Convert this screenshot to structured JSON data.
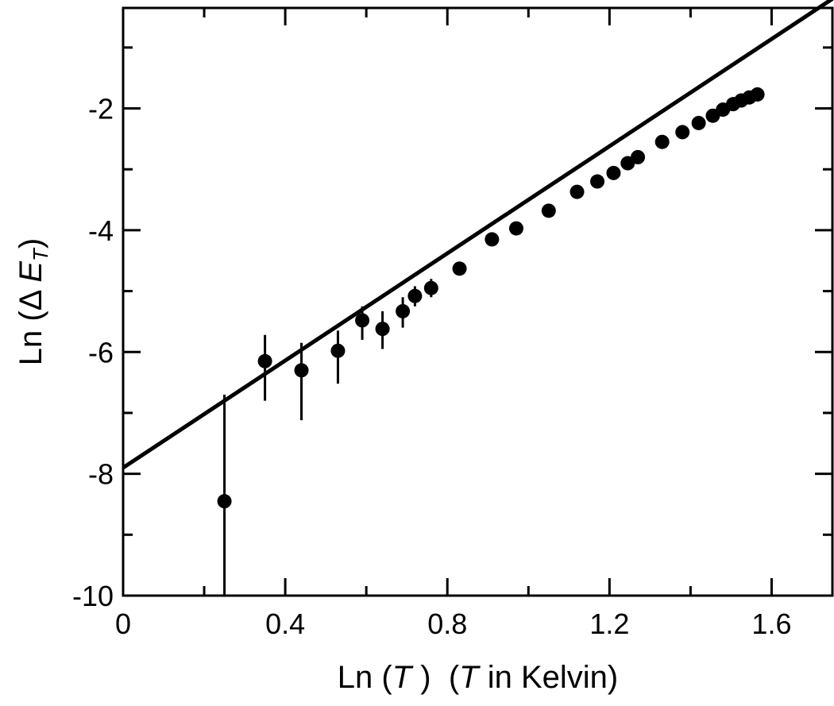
{
  "chart_data": {
    "type": "scatter",
    "title": "",
    "xlabel": {
      "prefix": "Ln (",
      "var1": "T",
      "mid": " )  (",
      "var2": "T",
      "suffix": " in Kelvin)"
    },
    "ylabel": {
      "prefix": "Ln (Δ ",
      "var": "E",
      "sub": "T",
      "suffix": ")"
    },
    "xlim": [
      0,
      1.75
    ],
    "ylim": [
      -10,
      -0.35
    ],
    "x_ticks": [
      0,
      0.4,
      0.8,
      1.2,
      1.6
    ],
    "x_tick_labels": [
      "0",
      "0.4",
      "0.8",
      "1.2",
      "1.6"
    ],
    "x_minor_ticks": [
      0.2,
      0.6,
      1.0,
      1.4
    ],
    "y_ticks": [
      -10,
      -8,
      -6,
      -4,
      -2
    ],
    "y_tick_labels": [
      "-10",
      "-8",
      "-6",
      "-4",
      "-2"
    ],
    "y_minor_ticks": [
      -9,
      -7,
      -5,
      -3,
      -1
    ],
    "grid": false,
    "legend": "none",
    "colors": {
      "marker": "#000000",
      "line": "#000000"
    },
    "fit_line": {
      "slope": 4.4,
      "intercept": -7.9
    },
    "series": [
      {
        "points": [
          {
            "x": 0.25,
            "y": -8.45,
            "ylow": -10.0,
            "yhigh": -6.7
          },
          {
            "x": 0.35,
            "y": -6.15,
            "ylow": -6.8,
            "yhigh": -5.72
          },
          {
            "x": 0.44,
            "y": -6.3,
            "ylow": -7.12,
            "yhigh": -5.85
          },
          {
            "x": 0.53,
            "y": -5.98,
            "ylow": -6.52,
            "yhigh": -5.65
          },
          {
            "x": 0.59,
            "y": -5.48,
            "ylow": -5.8,
            "yhigh": -5.25
          },
          {
            "x": 0.64,
            "y": -5.62,
            "ylow": -5.95,
            "yhigh": -5.33
          },
          {
            "x": 0.69,
            "y": -5.33,
            "ylow": -5.6,
            "yhigh": -5.1
          },
          {
            "x": 0.72,
            "y": -5.08,
            "ylow": -5.25,
            "yhigh": -4.92
          },
          {
            "x": 0.76,
            "y": -4.95,
            "ylow": -5.1,
            "yhigh": -4.8
          },
          {
            "x": 0.83,
            "y": -4.63
          },
          {
            "x": 0.91,
            "y": -4.15
          },
          {
            "x": 0.97,
            "y": -3.97
          },
          {
            "x": 1.05,
            "y": -3.68
          },
          {
            "x": 1.12,
            "y": -3.37
          },
          {
            "x": 1.17,
            "y": -3.2
          },
          {
            "x": 1.21,
            "y": -3.06
          },
          {
            "x": 1.245,
            "y": -2.9
          },
          {
            "x": 1.27,
            "y": -2.8
          },
          {
            "x": 1.33,
            "y": -2.55
          },
          {
            "x": 1.38,
            "y": -2.39
          },
          {
            "x": 1.42,
            "y": -2.24
          },
          {
            "x": 1.455,
            "y": -2.12
          },
          {
            "x": 1.48,
            "y": -2.02
          },
          {
            "x": 1.505,
            "y": -1.93
          },
          {
            "x": 1.525,
            "y": -1.87
          },
          {
            "x": 1.545,
            "y": -1.82
          },
          {
            "x": 1.565,
            "y": -1.77
          }
        ]
      }
    ]
  }
}
